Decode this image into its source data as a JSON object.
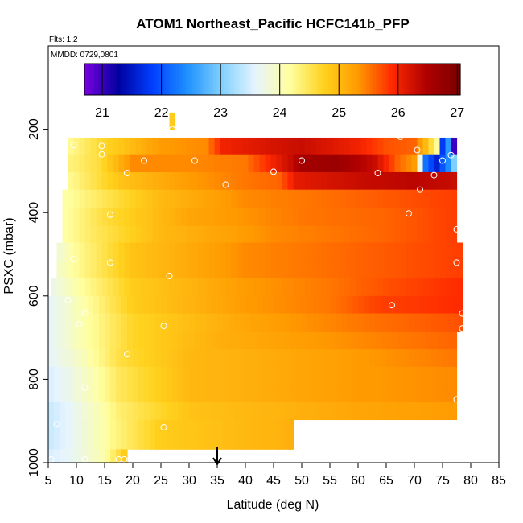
{
  "chart_data": {
    "type": "heatmap",
    "title": "ATOM1 Northeast_Pacific HCFC141b_PFP",
    "flights_label": "Flts: 1,2",
    "dates_label": "MMDD: 0729,0801",
    "xlabel": "Latitude (deg N)",
    "ylabel": "PSXC (mbar)",
    "xlim": [
      5,
      85
    ],
    "ylim": [
      1000,
      0
    ],
    "x_ticks": [
      "5",
      "10",
      "15",
      "20",
      "25",
      "30",
      "35",
      "40",
      "45",
      "50",
      "55",
      "60",
      "65",
      "70",
      "75",
      "80",
      "85"
    ],
    "y_ticks": [
      "200",
      "400",
      "600",
      "800",
      "1000"
    ],
    "colorbar": {
      "min": 20.7,
      "max": 27.05,
      "ticks": [
        "21",
        "22",
        "23",
        "24",
        "25",
        "26",
        "27"
      ],
      "stops": [
        "#7a00e0",
        "#0000a0",
        "#0040ff",
        "#1e90ff",
        "#7fd0ff",
        "#e6f4ff",
        "#ffffa0",
        "#ffd21e",
        "#ff9a00",
        "#ff2a00",
        "#b00000",
        "#7a0000"
      ]
    },
    "marker_latitude": 35,
    "bands": [
      {
        "p_top": 220,
        "p_bot": 262,
        "lat_start": 8.5,
        "lat_end": 77.5,
        "values": [
          [
            8.5,
            24.2
          ],
          [
            15,
            24.7
          ],
          [
            25,
            25.3
          ],
          [
            33,
            25.4
          ],
          [
            36,
            26.0
          ],
          [
            45,
            26.2
          ],
          [
            50,
            26.3
          ],
          [
            60,
            26.0
          ],
          [
            65,
            25.7
          ],
          [
            70,
            25.6
          ],
          [
            72,
            25.0
          ],
          [
            74,
            24.2
          ],
          [
            75,
            21.8
          ],
          [
            76,
            22.5
          ],
          [
            77,
            21.0
          ]
        ]
      },
      {
        "p_top": 262,
        "p_bot": 303,
        "lat_start": 8.5,
        "lat_end": 77.5,
        "values": [
          [
            8.5,
            24.3
          ],
          [
            14,
            24.6
          ],
          [
            20,
            25.4
          ],
          [
            30,
            25.4
          ],
          [
            40,
            25.5
          ],
          [
            45,
            26.0
          ],
          [
            48,
            26.3
          ],
          [
            50,
            26.6
          ],
          [
            56,
            26.7
          ],
          [
            63,
            26.3
          ],
          [
            67,
            25.6
          ],
          [
            70,
            25.3
          ],
          [
            72,
            22.2
          ],
          [
            74,
            21.6
          ],
          [
            76,
            22.4
          ],
          [
            77,
            23.0
          ]
        ]
      },
      {
        "p_top": 303,
        "p_bot": 345,
        "lat_start": 8.5,
        "lat_end": 77.5,
        "values": [
          [
            8.5,
            24.2
          ],
          [
            18,
            24.9
          ],
          [
            30,
            25.3
          ],
          [
            40,
            25.5
          ],
          [
            46,
            25.6
          ],
          [
            49,
            26.1
          ],
          [
            60,
            26.3
          ],
          [
            70,
            26.4
          ],
          [
            77.5,
            26.3
          ]
        ]
      },
      {
        "p_top": 345,
        "p_bot": 390,
        "lat_start": 7.5,
        "lat_end": 77.5,
        "values": [
          [
            7.5,
            24.1
          ],
          [
            15,
            24.5
          ],
          [
            25,
            25.0
          ],
          [
            40,
            25.4
          ],
          [
            60,
            25.6
          ],
          [
            77.5,
            25.8
          ]
        ]
      },
      {
        "p_top": 390,
        "p_bot": 432,
        "lat_start": 7.5,
        "lat_end": 77.5,
        "values": [
          [
            7.5,
            24.1
          ],
          [
            15,
            24.6
          ],
          [
            30,
            25.2
          ],
          [
            50,
            25.5
          ],
          [
            65,
            25.6
          ],
          [
            77.5,
            25.8
          ]
        ]
      },
      {
        "p_top": 432,
        "p_bot": 472,
        "lat_start": 7.5,
        "lat_end": 77.5,
        "values": [
          [
            7.5,
            24.1
          ],
          [
            12,
            24.4
          ],
          [
            25,
            25.0
          ],
          [
            45,
            25.4
          ],
          [
            65,
            25.6
          ],
          [
            77.5,
            25.8
          ]
        ]
      },
      {
        "p_top": 472,
        "p_bot": 515,
        "lat_start": 6.5,
        "lat_end": 78.5,
        "values": [
          [
            6.5,
            23.8
          ],
          [
            10,
            24.2
          ],
          [
            20,
            24.9
          ],
          [
            40,
            25.4
          ],
          [
            60,
            25.6
          ],
          [
            78.5,
            25.8
          ]
        ]
      },
      {
        "p_top": 515,
        "p_bot": 558,
        "lat_start": 6.5,
        "lat_end": 78.5,
        "values": [
          [
            6.5,
            23.9
          ],
          [
            10,
            24.2
          ],
          [
            20,
            24.9
          ],
          [
            40,
            25.4
          ],
          [
            60,
            25.6
          ],
          [
            78.5,
            25.8
          ]
        ]
      },
      {
        "p_top": 558,
        "p_bot": 600,
        "lat_start": 5.5,
        "lat_end": 78.5,
        "values": [
          [
            5.5,
            23.7
          ],
          [
            10,
            24.1
          ],
          [
            20,
            24.8
          ],
          [
            40,
            25.3
          ],
          [
            55,
            25.5
          ],
          [
            65,
            25.7
          ],
          [
            78.5,
            25.9
          ]
        ]
      },
      {
        "p_top": 600,
        "p_bot": 642,
        "lat_start": 5,
        "lat_end": 78.5,
        "values": [
          [
            5,
            23.6
          ],
          [
            10,
            24.0
          ],
          [
            20,
            24.8
          ],
          [
            40,
            25.3
          ],
          [
            55,
            25.5
          ],
          [
            64,
            25.8
          ],
          [
            67,
            25.8
          ],
          [
            78.5,
            25.9
          ]
        ]
      },
      {
        "p_top": 642,
        "p_bot": 685,
        "lat_start": 5,
        "lat_end": 78.5,
        "values": [
          [
            5,
            23.6
          ],
          [
            10,
            24.0
          ],
          [
            20,
            24.7
          ],
          [
            40,
            25.2
          ],
          [
            60,
            25.5
          ],
          [
            78.5,
            25.7
          ]
        ]
      },
      {
        "p_top": 685,
        "p_bot": 728,
        "lat_start": 5,
        "lat_end": 77.5,
        "values": [
          [
            5,
            23.6
          ],
          [
            10,
            24.0
          ],
          [
            20,
            24.7
          ],
          [
            35,
            25.1
          ],
          [
            60,
            25.4
          ],
          [
            77.5,
            25.6
          ]
        ]
      },
      {
        "p_top": 728,
        "p_bot": 770,
        "lat_start": 5,
        "lat_end": 77.5,
        "values": [
          [
            5,
            23.6
          ],
          [
            10,
            23.9
          ],
          [
            18,
            24.6
          ],
          [
            30,
            25.0
          ],
          [
            60,
            25.3
          ],
          [
            77.5,
            25.5
          ]
        ]
      },
      {
        "p_top": 770,
        "p_bot": 812,
        "lat_start": 5,
        "lat_end": 77.5,
        "values": [
          [
            5,
            23.5
          ],
          [
            10,
            23.8
          ],
          [
            18,
            24.5
          ],
          [
            30,
            25.0
          ],
          [
            60,
            25.3
          ],
          [
            77.5,
            25.4
          ]
        ]
      },
      {
        "p_top": 812,
        "p_bot": 855,
        "lat_start": 5,
        "lat_end": 77.5,
        "values": [
          [
            5,
            23.5
          ],
          [
            10,
            23.8
          ],
          [
            18,
            24.5
          ],
          [
            30,
            25.0
          ],
          [
            60,
            25.3
          ],
          [
            77.5,
            25.4
          ]
        ]
      },
      {
        "p_top": 855,
        "p_bot": 897,
        "lat_start": 5,
        "lat_end": 77.5,
        "values": [
          [
            5,
            23.4
          ],
          [
            10,
            23.7
          ],
          [
            18,
            24.4
          ],
          [
            30,
            24.9
          ],
          [
            60,
            25.2
          ],
          [
            77.5,
            25.3
          ]
        ]
      },
      {
        "p_top": 897,
        "p_bot": 940,
        "lat_start": 5,
        "lat_end": 48.5,
        "values": [
          [
            5,
            23.4
          ],
          [
            10,
            23.7
          ],
          [
            17,
            24.3
          ],
          [
            25,
            24.8
          ],
          [
            40,
            25.0
          ],
          [
            48.5,
            25.1
          ]
        ]
      },
      {
        "p_top": 940,
        "p_bot": 968,
        "lat_start": 5,
        "lat_end": 48.5,
        "values": [
          [
            5,
            23.4
          ],
          [
            10,
            23.7
          ],
          [
            17,
            24.3
          ],
          [
            25,
            24.8
          ],
          [
            40,
            25.0
          ],
          [
            48.5,
            25.1
          ]
        ]
      },
      {
        "p_top": 968,
        "p_bot": 1000,
        "lat_start": 5,
        "lat_end": 19,
        "values": [
          [
            5,
            23.5
          ],
          [
            10,
            23.7
          ],
          [
            15,
            24.1
          ],
          [
            19,
            24.9
          ]
        ]
      },
      {
        "p_top": 160,
        "p_bot": 200,
        "lat_start": 26.5,
        "lat_end": 27.5,
        "values": [
          [
            26.5,
            24.8
          ],
          [
            27.5,
            24.8
          ]
        ]
      }
    ],
    "samples": [
      [
        27,
        200
      ],
      [
        67.5,
        218
      ],
      [
        9.5,
        238
      ],
      [
        14.5,
        240
      ],
      [
        70.5,
        250
      ],
      [
        14.5,
        260
      ],
      [
        76.5,
        262
      ],
      [
        22,
        275
      ],
      [
        31,
        275
      ],
      [
        50,
        275
      ],
      [
        75,
        275
      ],
      [
        19,
        305
      ],
      [
        45,
        302
      ],
      [
        63.5,
        305
      ],
      [
        73.5,
        310
      ],
      [
        36.5,
        333
      ],
      [
        71,
        345
      ],
      [
        16,
        405
      ],
      [
        69,
        402
      ],
      [
        77.5,
        440
      ],
      [
        79,
        465
      ],
      [
        9.5,
        512
      ],
      [
        16,
        520
      ],
      [
        77.5,
        520
      ],
      [
        26.5,
        552
      ],
      [
        8.5,
        610
      ],
      [
        66,
        622
      ],
      [
        78.5,
        642
      ],
      [
        11.5,
        640
      ],
      [
        10.5,
        668
      ],
      [
        25.5,
        672
      ],
      [
        78.5,
        678
      ],
      [
        19,
        740
      ],
      [
        11.5,
        820
      ],
      [
        77.5,
        848
      ],
      [
        6.5,
        908
      ],
      [
        25.5,
        915
      ],
      [
        78.5,
        902
      ],
      [
        5.5,
        992
      ],
      [
        11.5,
        992
      ],
      [
        17.5,
        992
      ],
      [
        18.5,
        992
      ]
    ]
  }
}
